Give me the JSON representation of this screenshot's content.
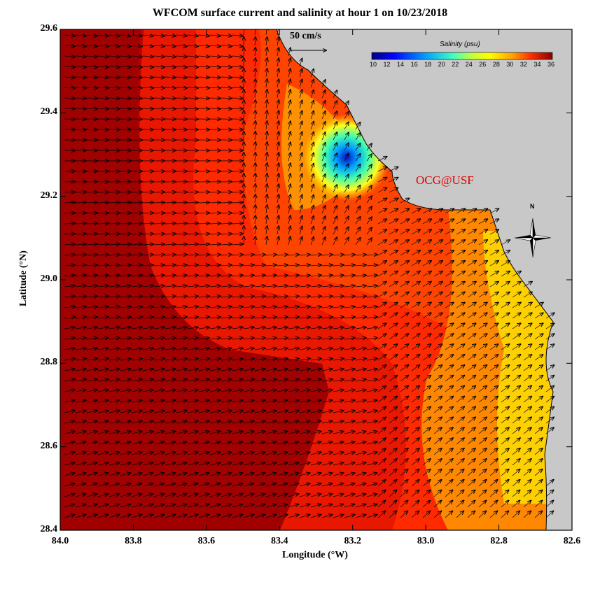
{
  "title": "WFCOM surface current and salinity at hour 1 on 10/23/2018",
  "xlabel": "Longitude (°W)",
  "ylabel": "Latitude (°N)",
  "x_ticks": [
    "84.0",
    "83.8",
    "83.6",
    "83.4",
    "83.2",
    "83.0",
    "82.8",
    "82.6"
  ],
  "y_ticks": [
    "29.6",
    "29.4",
    "29.2",
    "29.0",
    "28.8",
    "28.6",
    "28.4"
  ],
  "credit": "OCG@USF",
  "scale_label": "50 cm/s",
  "colorbar": {
    "title": "Salinity (psu)",
    "ticks": [
      "10",
      "12",
      "14",
      "16",
      "18",
      "20",
      "22",
      "24",
      "26",
      "28",
      "30",
      "32",
      "34",
      "36"
    ]
  },
  "compass_label": "N",
  "colors": {
    "land": "#c8c8c8",
    "high_salinity": "#b00000",
    "mid_salinity": "#ff3000",
    "low_salinity": "#ffe000",
    "fresh": "#0000c0",
    "credit": "#e00000"
  },
  "map_extent": {
    "lon_west": 84.0,
    "lon_east": 82.6,
    "lat_south": 28.4,
    "lat_north": 29.6
  }
}
